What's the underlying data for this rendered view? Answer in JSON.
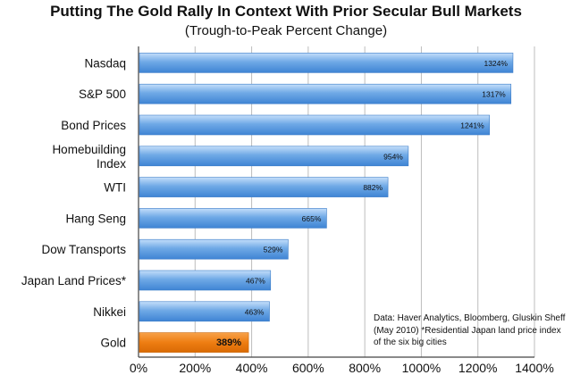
{
  "chart_data": {
    "type": "bar",
    "orientation": "horizontal",
    "title": "Putting The Gold Rally In Context With Prior Secular Bull Markets",
    "subtitle": "(Trough-to-Peak Percent Change)",
    "categories": [
      [
        "Nasdaq"
      ],
      [
        "S&P 500"
      ],
      [
        "Bond Prices"
      ],
      [
        "Homebuilding",
        "Index"
      ],
      [
        "WTI"
      ],
      [
        "Hang Seng"
      ],
      [
        "Dow Transports"
      ],
      [
        "Japan Land Prices*"
      ],
      [
        "Nikkei"
      ],
      [
        "Gold"
      ]
    ],
    "values": [
      1324,
      1317,
      1241,
      954,
      882,
      665,
      529,
      467,
      463,
      389
    ],
    "value_labels": [
      "1324%",
      "1317%",
      "1241%",
      "954%",
      "882%",
      "665%",
      "529%",
      "467%",
      "463%",
      "389%"
    ],
    "highlight_index": 9,
    "colors": {
      "bar": "#5a9de0",
      "bar_light": "#b9d6f5",
      "highlight": "#f07d10",
      "grid": "#bdbdbd"
    },
    "xlim": [
      0,
      1400
    ],
    "ticks": [
      0,
      200,
      400,
      600,
      800,
      1000,
      1200,
      1400
    ],
    "tick_labels": [
      "0%",
      "200%",
      "400%",
      "600%",
      "800%",
      "1000%",
      "1200%",
      "1400%"
    ],
    "grid": true,
    "source_note": "Data: Haver Analytics, Bloomberg, Gluskin Sheff (May 2010) *Residential Japan land price index of the six big cities"
  }
}
